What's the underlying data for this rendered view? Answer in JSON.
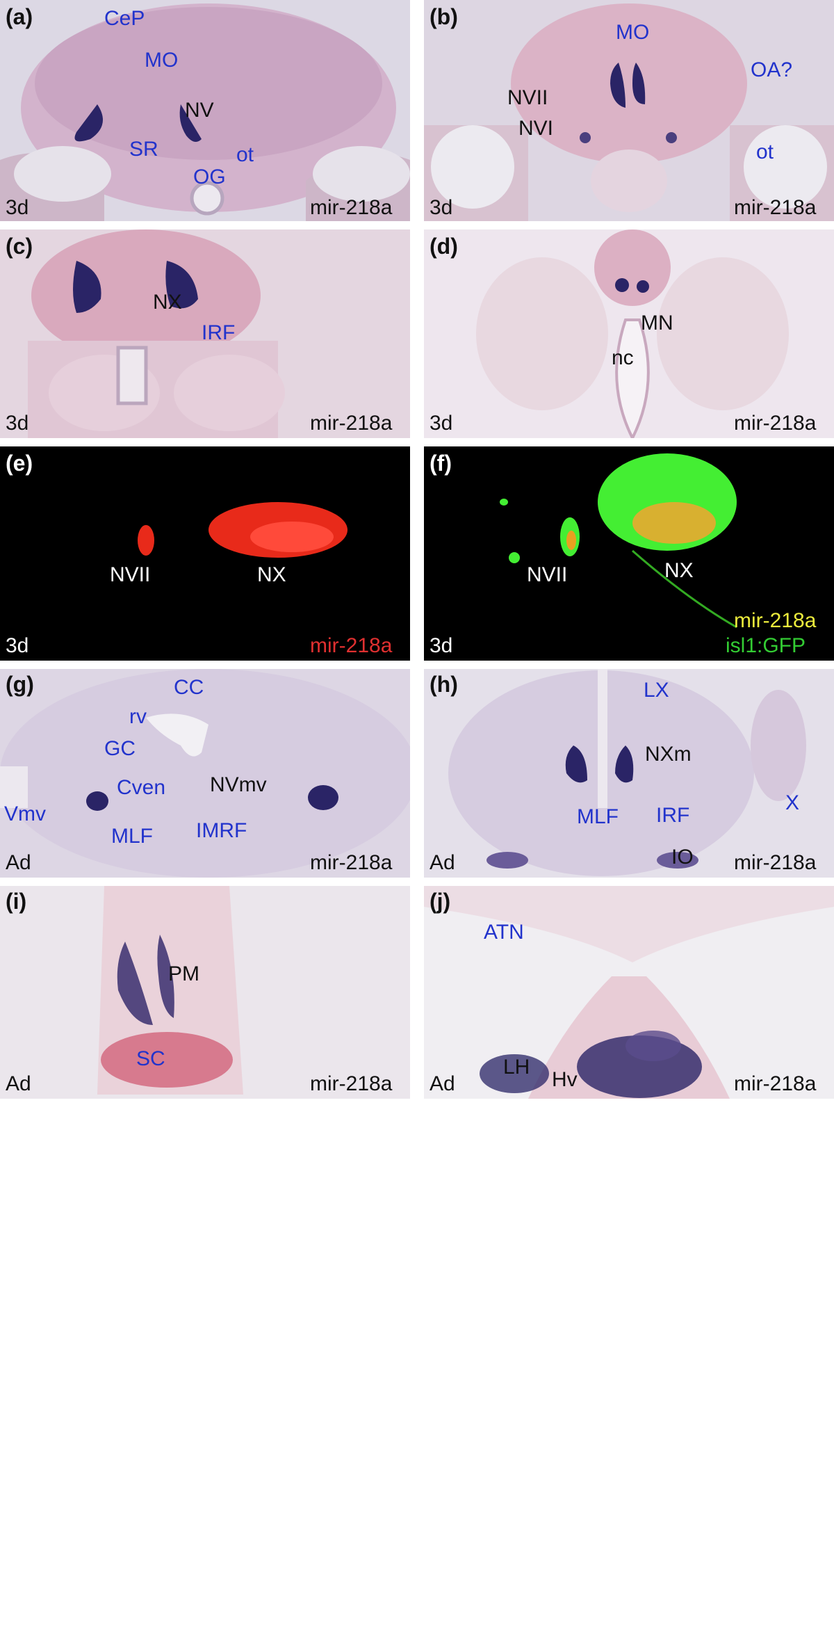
{
  "panels": {
    "a": {
      "letter": "(a)",
      "stage": "3d",
      "probe": "mir-218a",
      "labels": {
        "cep": "CeP",
        "mo": "MO",
        "nv": "NV",
        "sr": "SR",
        "ot": "ot",
        "og": "OG"
      }
    },
    "b": {
      "letter": "(b)",
      "stage": "3d",
      "probe": "mir-218a",
      "labels": {
        "mo": "MO",
        "oa": "OA?",
        "nvii": "NVII",
        "nvi": "NVI",
        "ot": "ot"
      }
    },
    "c": {
      "letter": "(c)",
      "stage": "3d",
      "probe": "mir-218a",
      "labels": {
        "nx": "NX",
        "irf": "IRF"
      }
    },
    "d": {
      "letter": "(d)",
      "stage": "3d",
      "probe": "mir-218a",
      "labels": {
        "mn": "MN",
        "nc": "nc"
      }
    },
    "e": {
      "letter": "(e)",
      "stage": "3d",
      "probe": "mir-218a",
      "labels": {
        "nvii": "NVII",
        "nx": "NX"
      }
    },
    "f": {
      "letter": "(f)",
      "stage": "3d",
      "probe": "mir-218a",
      "probe2": "isl1:GFP",
      "labels": {
        "nvii": "NVII",
        "nx": "NX"
      }
    },
    "g": {
      "letter": "(g)",
      "stage": "Ad",
      "probe": "mir-218a",
      "labels": {
        "cc": "CC",
        "rv": "rv",
        "gc": "GC",
        "cven": "Cven",
        "nvmv": "NVmv",
        "vmv": "Vmv",
        "mlf": "MLF",
        "imrf": "IMRF"
      }
    },
    "h": {
      "letter": "(h)",
      "stage": "Ad",
      "probe": "mir-218a",
      "labels": {
        "lx": "LX",
        "nxm": "NXm",
        "mlf": "MLF",
        "irf": "IRF",
        "x": "X",
        "io": "IO"
      }
    },
    "i": {
      "letter": "(i)",
      "stage": "Ad",
      "probe": "mir-218a",
      "labels": {
        "pm": "PM",
        "sc": "SC"
      }
    },
    "j": {
      "letter": "(j)",
      "stage": "Ad",
      "probe": "mir-218a",
      "labels": {
        "atn": "ATN",
        "lh": "LH",
        "hv": "Hv"
      }
    }
  },
  "colors": {
    "label_blue": "#2233cc",
    "stain_purple": "#2a2466",
    "tissue_pink": "#e2b8c6",
    "fluor_red": "#e82a1a",
    "fluor_green": "#44ee33",
    "fluor_yellow": "#ecec3c"
  }
}
